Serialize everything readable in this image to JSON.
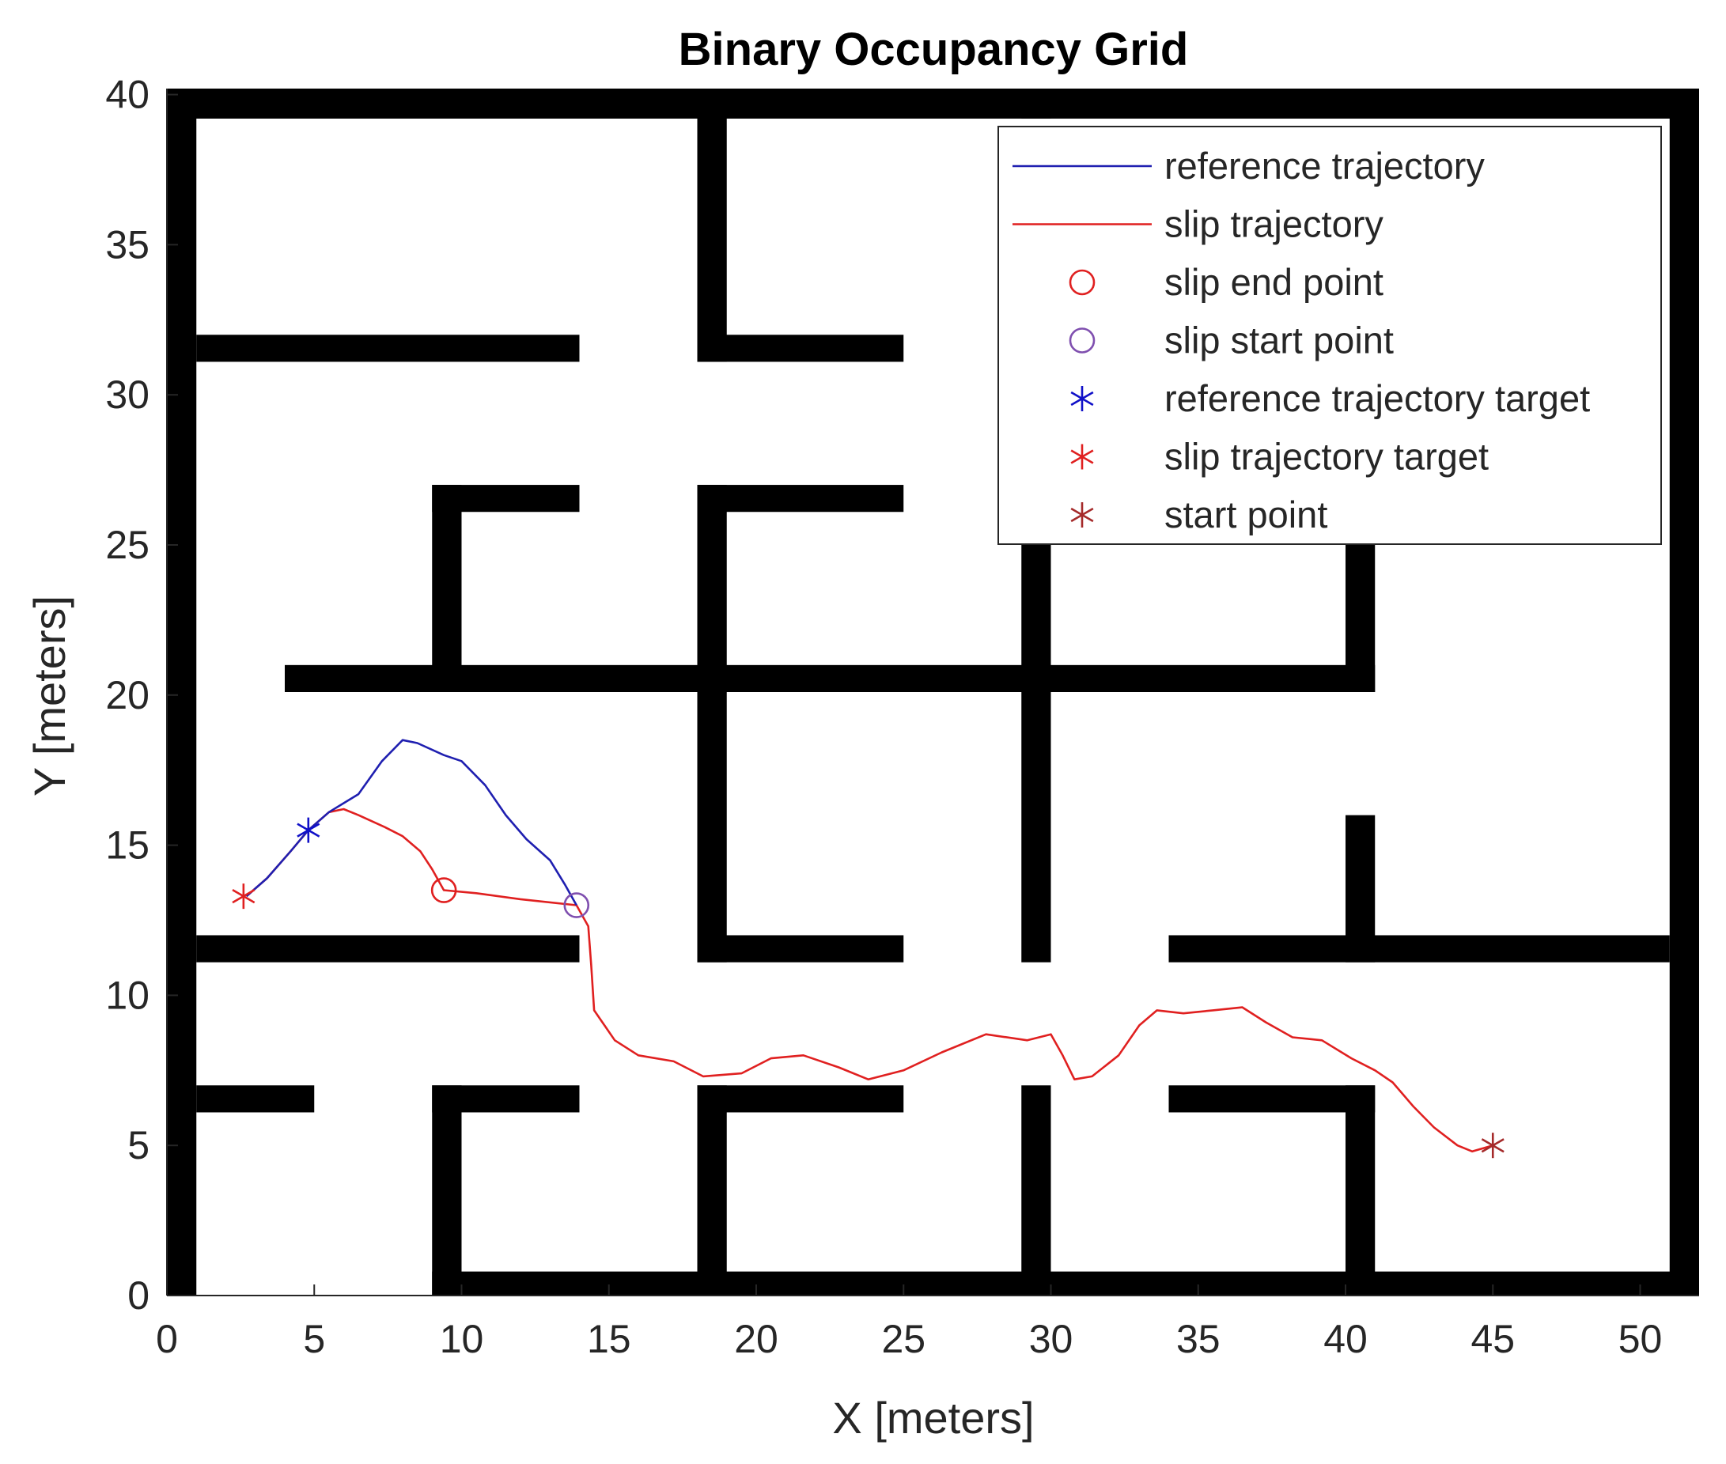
{
  "chart_data": {
    "type": "line",
    "title": "Binary Occupancy Grid",
    "xlabel": "X [meters]",
    "ylabel": "Y [meters]",
    "xlim": [
      0,
      52
    ],
    "ylim": [
      0,
      40.2
    ],
    "xticks": [
      0,
      5,
      10,
      15,
      20,
      25,
      30,
      35,
      40,
      45,
      50
    ],
    "yticks": [
      0,
      5,
      10,
      15,
      20,
      25,
      30,
      35,
      40
    ],
    "grid": false,
    "legend_position": "top-right",
    "colors": {
      "reference": "#1f1fb0",
      "slip": "#e02020",
      "slip_end": "#e02020",
      "slip_start": "#7f4faf",
      "ref_target": "#1010c8",
      "slip_target": "#e02020",
      "start": "#a52a2a",
      "walls": "#000000"
    },
    "occupancy_walls": [
      [
        0,
        39.2,
        52,
        40.2
      ],
      [
        0,
        0,
        1,
        40.2
      ],
      [
        51,
        0,
        52,
        40.2
      ],
      [
        9,
        0,
        52,
        0.8
      ],
      [
        18,
        31.1,
        19,
        40.2
      ],
      [
        29,
        39.2,
        30,
        40.2
      ],
      [
        1,
        31.1,
        14,
        32
      ],
      [
        18,
        31.1,
        25,
        32
      ],
      [
        9,
        20.1,
        10,
        27
      ],
      [
        9,
        26.1,
        14,
        27
      ],
      [
        18,
        20.1,
        19,
        27
      ],
      [
        18,
        26.1,
        25,
        27
      ],
      [
        4,
        20.1,
        41,
        21
      ],
      [
        29,
        11.1,
        30,
        26
      ],
      [
        40,
        20.1,
        41,
        26
      ],
      [
        18,
        11.1,
        19,
        21
      ],
      [
        1,
        11.1,
        14,
        12
      ],
      [
        18,
        11.1,
        25,
        12
      ],
      [
        40,
        11.1,
        41,
        16
      ],
      [
        34,
        11.1,
        51,
        12
      ],
      [
        1,
        6.1,
        5,
        7
      ],
      [
        9,
        0,
        10,
        7
      ],
      [
        9,
        6.1,
        14,
        7
      ],
      [
        18,
        0,
        19,
        7
      ],
      [
        18,
        6.1,
        25,
        7
      ],
      [
        29,
        0,
        30,
        7
      ],
      [
        34,
        6.1,
        41,
        7
      ],
      [
        40,
        0,
        41,
        7
      ]
    ],
    "series": [
      {
        "name": "reference trajectory",
        "x": [
          2.7,
          3.4,
          4.2,
          4.8,
          5.5,
          6.5,
          7.3,
          8.0,
          8.5,
          9.4,
          10.0,
          10.8,
          11.5,
          12.2,
          13.0,
          13.5,
          13.9
        ],
        "y": [
          13.3,
          13.9,
          14.8,
          15.5,
          16.1,
          16.7,
          17.8,
          18.5,
          18.4,
          18.0,
          17.8,
          17.0,
          16.0,
          15.2,
          14.5,
          13.7,
          13.0
        ]
      },
      {
        "name": "slip trajectory",
        "x": [
          2.7,
          3.4,
          4.2,
          4.8,
          5.5,
          6.0,
          6.5,
          7.4,
          8.0,
          8.6,
          9.0,
          9.4,
          10.5,
          12.0,
          13.9,
          14.3,
          14.4,
          14.5,
          15.2,
          16.0,
          17.2,
          18.2,
          19.5,
          20.5,
          21.6,
          22.8,
          23.8,
          25.0,
          26.3,
          27.8,
          29.2,
          30.0,
          30.4,
          30.8,
          31.4,
          32.3,
          33.0,
          33.6,
          34.5,
          35.5,
          36.5,
          37.3,
          38.2,
          39.2,
          40.2,
          41.0,
          41.6,
          42.3,
          43.0,
          43.8,
          44.3,
          45.0
        ],
        "y": [
          13.3,
          13.9,
          14.8,
          15.5,
          16.1,
          16.2,
          16.0,
          15.6,
          15.3,
          14.8,
          14.2,
          13.5,
          13.4,
          13.2,
          13.0,
          12.3,
          11.0,
          9.5,
          8.5,
          8.0,
          7.8,
          7.3,
          7.4,
          7.9,
          8.0,
          7.6,
          7.2,
          7.5,
          8.1,
          8.7,
          8.5,
          8.7,
          8.0,
          7.2,
          7.3,
          8.0,
          9.0,
          9.5,
          9.4,
          9.5,
          9.6,
          9.1,
          8.6,
          8.5,
          7.9,
          7.5,
          7.1,
          6.3,
          5.6,
          5.0,
          4.8,
          5.0
        ]
      },
      {
        "name": "slip end point",
        "x": [
          9.4
        ],
        "y": [
          13.5
        ]
      },
      {
        "name": "slip start point",
        "x": [
          13.9
        ],
        "y": [
          13.0
        ]
      },
      {
        "name": "reference trajectory target",
        "x": [
          4.8
        ],
        "y": [
          15.5
        ]
      },
      {
        "name": "slip trajectory target",
        "x": [
          2.6
        ],
        "y": [
          13.3
        ]
      },
      {
        "name": "start point",
        "x": [
          45.0
        ],
        "y": [
          5.0
        ]
      }
    ]
  }
}
